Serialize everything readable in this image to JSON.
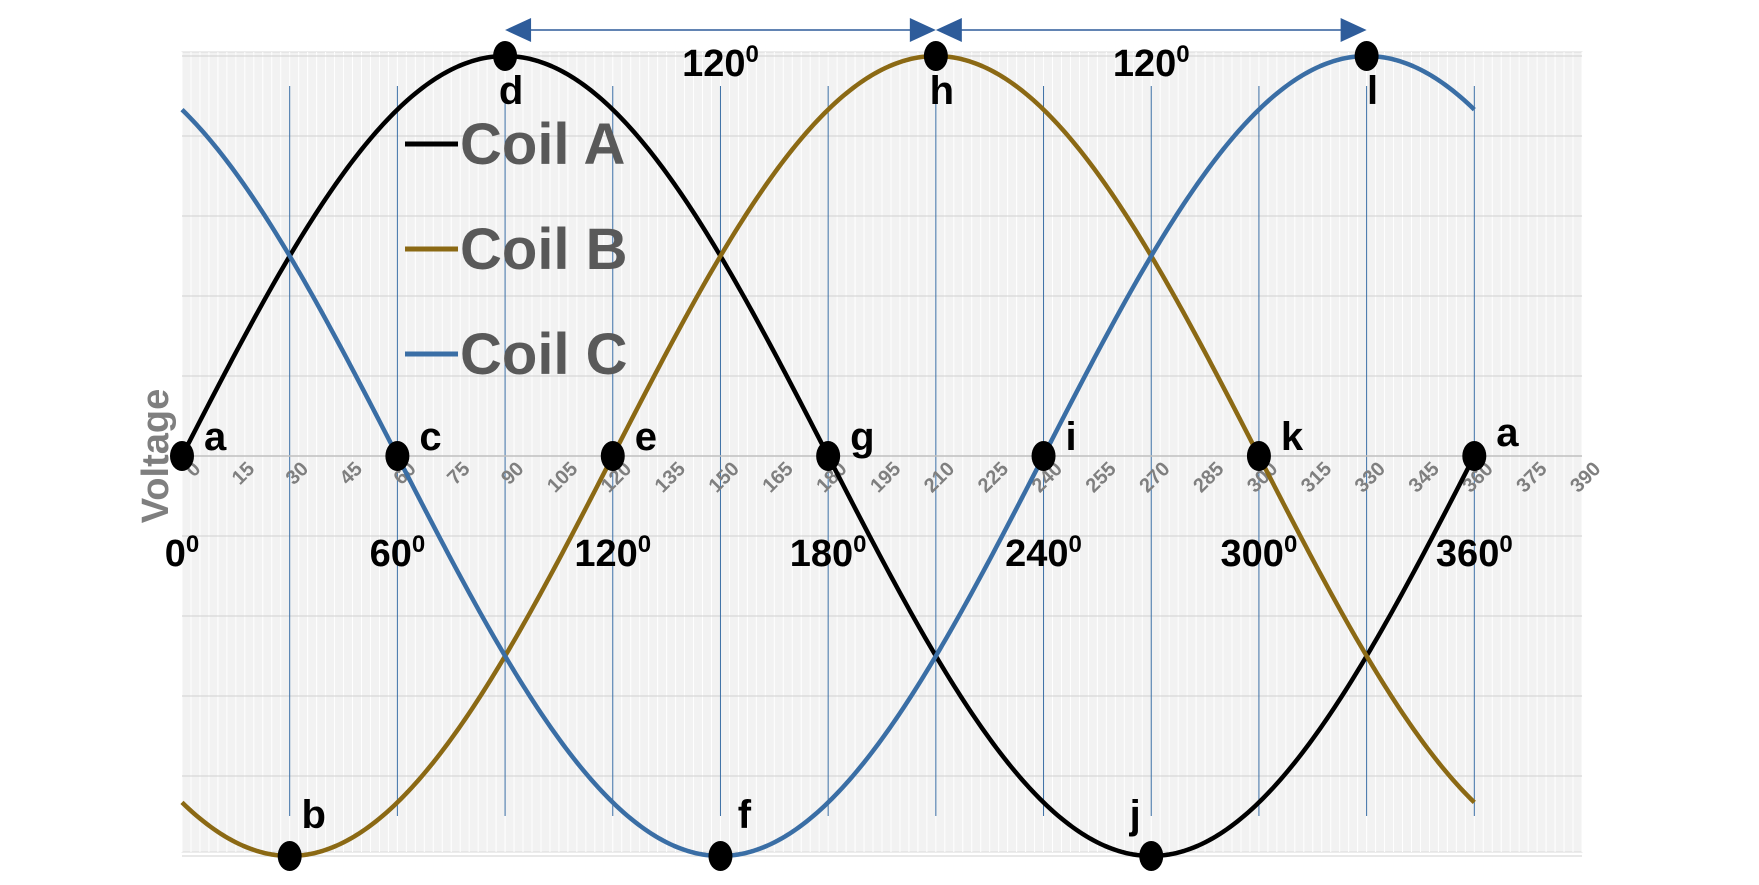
{
  "chart_data": {
    "type": "line",
    "ylabel": "Voltage",
    "xlabel": "",
    "xlim": [
      0,
      390
    ],
    "ylim": [
      -1,
      1
    ],
    "x_ticks": [
      "0",
      "15",
      "30",
      "45",
      "60",
      "75",
      "90",
      "105",
      "120",
      "135",
      "150",
      "165",
      "180",
      "195",
      "210",
      "225",
      "240",
      "255",
      "270",
      "285",
      "300",
      "315",
      "330",
      "345",
      "360",
      "375",
      "390"
    ],
    "x_range": [
      0,
      360
    ],
    "series": [
      {
        "name": "Coil A",
        "color": "#000000",
        "phase_deg": 0
      },
      {
        "name": "Coil B",
        "color": "#8b6914",
        "phase_deg": -120
      },
      {
        "name": "Coil C",
        "color": "#3a6ea5",
        "phase_deg": 120
      }
    ],
    "vertical_lines": [
      30,
      60,
      90,
      120,
      150,
      180,
      210,
      240,
      270,
      300,
      330,
      360
    ],
    "points": [
      {
        "label": "a",
        "x": 0,
        "y": 0
      },
      {
        "label": "b",
        "x": 30,
        "y": -1
      },
      {
        "label": "c",
        "x": 60,
        "y": 0
      },
      {
        "label": "d",
        "x": 90,
        "y": 1
      },
      {
        "label": "e",
        "x": 120,
        "y": 0
      },
      {
        "label": "f",
        "x": 150,
        "y": -1
      },
      {
        "label": "g",
        "x": 180,
        "y": 0
      },
      {
        "label": "h",
        "x": 210,
        "y": 1
      },
      {
        "label": "i",
        "x": 240,
        "y": 0
      },
      {
        "label": "j",
        "x": 270,
        "y": -1
      },
      {
        "label": "k",
        "x": 300,
        "y": 0
      },
      {
        "label": "l",
        "x": 330,
        "y": 1
      },
      {
        "label": "a",
        "x": 360,
        "y": 0
      }
    ],
    "degree_labels": [
      {
        "value": "0",
        "sup": "0",
        "x": 0
      },
      {
        "value": "60",
        "sup": "0",
        "x": 60
      },
      {
        "value": "120",
        "sup": "0",
        "x": 120
      },
      {
        "value": "180",
        "sup": "0",
        "x": 180
      },
      {
        "value": "240",
        "sup": "0",
        "x": 240
      },
      {
        "value": "300",
        "sup": "0",
        "x": 300
      },
      {
        "value": "360",
        "sup": "0",
        "x": 360
      }
    ],
    "phase_arrows": [
      {
        "from": 90,
        "to": 210,
        "value": "120",
        "sup": "0"
      },
      {
        "from": 210,
        "to": 330,
        "value": "120",
        "sup": "0"
      }
    ],
    "arrow_color": "#2e5c9a"
  }
}
